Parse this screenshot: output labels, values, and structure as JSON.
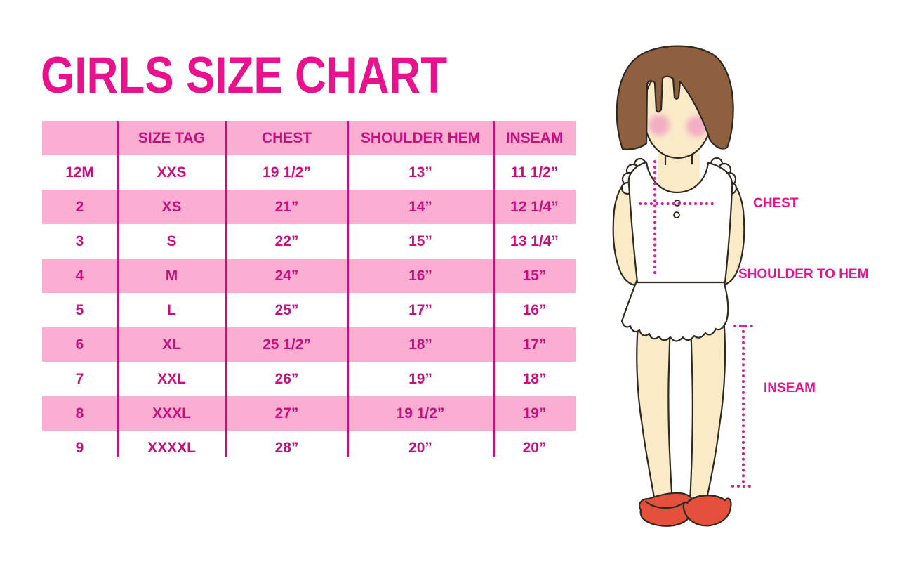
{
  "title": "GIRLS SIZE CHART",
  "colors": {
    "accent": "#E8128C",
    "table_text": "#C8107D",
    "row_pink": "#FBAED2",
    "divider": "#C8107D",
    "dotted": "#DE1E8E",
    "hair": "#8F6040",
    "skin": "#FAEAC8",
    "blush": "#F2AFC4",
    "shoe": "#E5503C",
    "outline": "#2F2920"
  },
  "chart_data": {
    "type": "table",
    "title": "GIRLS SIZE CHART",
    "columns": [
      "",
      "SIZE TAG",
      "CHEST",
      "SHOULDER HEM",
      "INSEAM"
    ],
    "rows": [
      [
        "12M",
        "XXS",
        "19 1/2”",
        "13”",
        "11 1/2”"
      ],
      [
        "2",
        "XS",
        "21”",
        "14”",
        "12 1/4”"
      ],
      [
        "3",
        "S",
        "22”",
        "15”",
        "13 1/4”"
      ],
      [
        "4",
        "M",
        "24”",
        "16”",
        "15”"
      ],
      [
        "5",
        "L",
        "25”",
        "17”",
        "16”"
      ],
      [
        "6",
        "XL",
        "25 1/2”",
        "18”",
        "17”"
      ],
      [
        "7",
        "XXL",
        "26”",
        "19”",
        "18”"
      ],
      [
        "8",
        "XXXL",
        "27”",
        "19 1/2”",
        "19”"
      ],
      [
        "9",
        "XXXXL",
        "28”",
        "20”",
        "20”"
      ]
    ],
    "layout_hints": {
      "striped_rows": "header and rows 2,4,6,8 are pink; others white",
      "gridlines": "vertical magenta column dividers only, no outer border"
    },
    "annotations": [
      "CHEST",
      "SHOULDER TO HEM",
      "INSEAM"
    ]
  },
  "figure": {
    "description_labels": {
      "chest": "CHEST",
      "shoulder_to_hem": "SHOULDER TO HEM",
      "inseam": "INSEAM"
    }
  }
}
